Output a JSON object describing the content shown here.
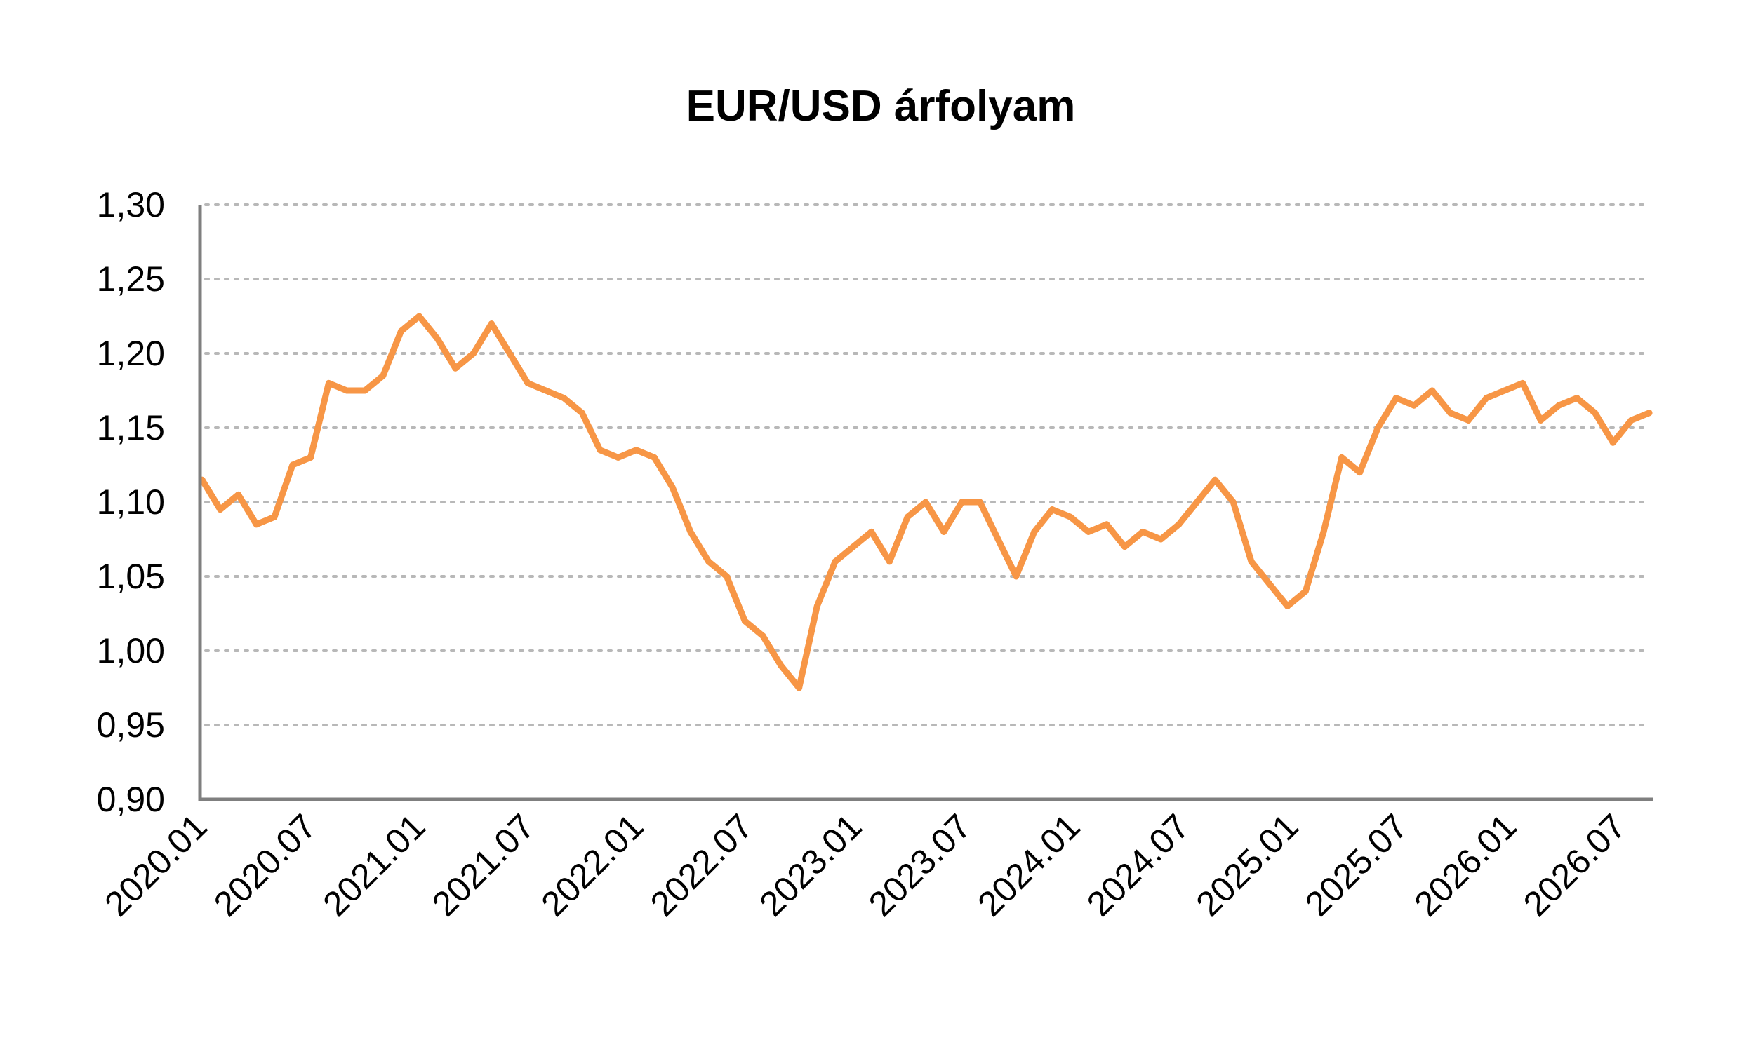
{
  "chart_data": {
    "type": "line",
    "title": "EUR/USD árfolyam",
    "xlabel": "",
    "ylabel": "",
    "ylim": [
      0.9,
      1.3
    ],
    "y_ticks": [
      "0,90",
      "0,95",
      "1,00",
      "1,05",
      "1,10",
      "1,15",
      "1,20",
      "1,25",
      "1,30"
    ],
    "x_ticks": [
      "2020.01",
      "2020.07",
      "2021.01",
      "2021.07",
      "2022.01",
      "2022.07",
      "2023.01",
      "2023.07",
      "2024.01",
      "2024.07",
      "2025.01",
      "2025.07",
      "2026.01",
      "2026.07"
    ],
    "grid": true,
    "legend": "none",
    "line_color": "#F79646",
    "series": [
      {
        "x": [
          "2020.01",
          "2020.02",
          "2020.03",
          "2020.04",
          "2020.05",
          "2020.06",
          "2020.07",
          "2020.08",
          "2020.09",
          "2020.10",
          "2020.11",
          "2020.12",
          "2021.01",
          "2021.02",
          "2021.03",
          "2021.04",
          "2021.05",
          "2021.06",
          "2021.07",
          "2021.08",
          "2021.09",
          "2021.10",
          "2021.11",
          "2021.12",
          "2022.01",
          "2022.02",
          "2022.03",
          "2022.04",
          "2022.05",
          "2022.06",
          "2022.07",
          "2022.08",
          "2022.09",
          "2022.10",
          "2022.11",
          "2022.12",
          "2023.01",
          "2023.02",
          "2023.03",
          "2023.04",
          "2023.05",
          "2023.06",
          "2023.07",
          "2023.08",
          "2023.09",
          "2023.10",
          "2023.11",
          "2023.12",
          "2024.01",
          "2024.02",
          "2024.03",
          "2024.04",
          "2024.05",
          "2024.06",
          "2024.07",
          "2024.08",
          "2024.09",
          "2024.10",
          "2024.11",
          "2024.12",
          "2025.01",
          "2025.02",
          "2025.03",
          "2025.04",
          "2025.05",
          "2025.06",
          "2025.07",
          "2025.08",
          "2025.09",
          "2025.10",
          "2025.11",
          "2025.12",
          "2026.01",
          "2026.02",
          "2026.03",
          "2026.04",
          "2026.05",
          "2026.06",
          "2026.07",
          "2026.08",
          "2026.09"
        ],
        "values": [
          1.115,
          1.095,
          1.105,
          1.085,
          1.09,
          1.125,
          1.13,
          1.18,
          1.175,
          1.175,
          1.185,
          1.215,
          1.225,
          1.21,
          1.19,
          1.2,
          1.22,
          1.2,
          1.18,
          1.175,
          1.17,
          1.16,
          1.135,
          1.13,
          1.135,
          1.13,
          1.11,
          1.08,
          1.06,
          1.05,
          1.02,
          1.01,
          0.99,
          0.975,
          1.03,
          1.06,
          1.07,
          1.08,
          1.06,
          1.09,
          1.1,
          1.08,
          1.1,
          1.1,
          1.075,
          1.05,
          1.08,
          1.095,
          1.09,
          1.08,
          1.085,
          1.07,
          1.08,
          1.075,
          1.085,
          1.1,
          1.115,
          1.1,
          1.06,
          1.045,
          1.03,
          1.04,
          1.08,
          1.13,
          1.12,
          1.15,
          1.17,
          1.165,
          1.175,
          1.16,
          1.155,
          1.17,
          1.175,
          1.18,
          1.155,
          1.165,
          1.17,
          1.16,
          1.14,
          1.155,
          1.16
        ]
      }
    ]
  }
}
